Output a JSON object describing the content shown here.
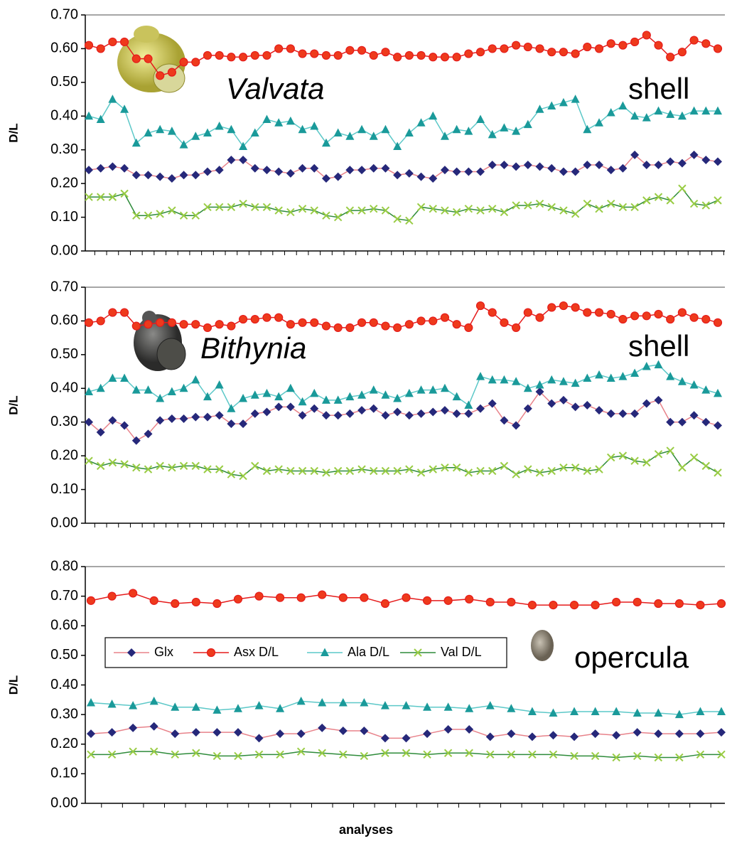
{
  "chart_data": [
    {
      "type": "line",
      "ylabel": "D/L",
      "annotations": [
        "Valvata",
        "shell"
      ],
      "ylim": [
        0,
        0.7
      ],
      "yticks": [
        {
          "value": 0,
          "label": "0.00"
        },
        {
          "value": 0.1,
          "label": "0.10"
        },
        {
          "value": 0.2,
          "label": "0.20"
        },
        {
          "value": 0.3,
          "label": "0.30"
        },
        {
          "value": 0.4,
          "label": "0.40"
        },
        {
          "value": 0.5,
          "label": "0.50"
        },
        {
          "value": 0.6,
          "label": "0.60"
        },
        {
          "value": 0.7,
          "label": "0.70"
        }
      ],
      "series": [
        {
          "marker": "diamond",
          "color": "#26287a",
          "line_color": "#e8828a",
          "values": [
            0.24,
            0.245,
            0.25,
            0.245,
            0.225,
            0.225,
            0.22,
            0.215,
            0.225,
            0.225,
            0.235,
            0.24,
            0.27,
            0.27,
            0.245,
            0.24,
            0.235,
            0.23,
            0.245,
            0.245,
            0.215,
            0.22,
            0.24,
            0.24,
            0.245,
            0.245,
            0.225,
            0.23,
            0.22,
            0.215,
            0.24,
            0.235,
            0.235,
            0.235,
            0.255,
            0.255,
            0.25,
            0.255,
            0.25,
            0.245,
            0.235,
            0.235,
            0.255,
            0.255,
            0.24,
            0.245,
            0.285,
            0.255,
            0.255,
            0.265,
            0.26,
            0.285,
            0.27,
            0.265
          ]
        },
        {
          "marker": "circle",
          "color": "#ee3a1c",
          "line_color": "#e51b1b",
          "values": [
            0.61,
            0.6,
            0.62,
            0.62,
            0.57,
            0.57,
            0.52,
            0.53,
            0.56,
            0.56,
            0.58,
            0.58,
            0.575,
            0.575,
            0.58,
            0.58,
            0.6,
            0.6,
            0.585,
            0.585,
            0.58,
            0.58,
            0.595,
            0.595,
            0.58,
            0.59,
            0.575,
            0.58,
            0.58,
            0.575,
            0.575,
            0.575,
            0.585,
            0.59,
            0.6,
            0.6,
            0.61,
            0.605,
            0.6,
            0.59,
            0.59,
            0.585,
            0.605,
            0.6,
            0.615,
            0.61,
            0.62,
            0.64,
            0.61,
            0.575,
            0.59,
            0.625,
            0.615,
            0.6
          ]
        },
        {
          "marker": "triangle",
          "color": "#1a9a9a",
          "line_color": "#5cc8c8",
          "values": [
            0.4,
            0.39,
            0.45,
            0.42,
            0.32,
            0.35,
            0.36,
            0.355,
            0.315,
            0.34,
            0.35,
            0.37,
            0.36,
            0.31,
            0.35,
            0.39,
            0.38,
            0.385,
            0.36,
            0.37,
            0.32,
            0.35,
            0.34,
            0.36,
            0.34,
            0.36,
            0.31,
            0.35,
            0.38,
            0.4,
            0.34,
            0.36,
            0.355,
            0.39,
            0.345,
            0.365,
            0.355,
            0.375,
            0.42,
            0.43,
            0.44,
            0.45,
            0.36,
            0.38,
            0.41,
            0.43,
            0.4,
            0.395,
            0.415,
            0.405,
            0.4,
            0.415,
            0.415,
            0.415
          ]
        },
        {
          "marker": "x",
          "color": "#99cc44",
          "line_color": "#2e8b3a",
          "values": [
            0.16,
            0.16,
            0.16,
            0.17,
            0.105,
            0.105,
            0.11,
            0.12,
            0.105,
            0.105,
            0.13,
            0.13,
            0.13,
            0.14,
            0.13,
            0.13,
            0.12,
            0.115,
            0.125,
            0.12,
            0.105,
            0.1,
            0.12,
            0.12,
            0.125,
            0.12,
            0.095,
            0.09,
            0.13,
            0.125,
            0.12,
            0.115,
            0.125,
            0.12,
            0.125,
            0.115,
            0.135,
            0.135,
            0.14,
            0.13,
            0.12,
            0.11,
            0.14,
            0.125,
            0.14,
            0.13,
            0.13,
            0.15,
            0.16,
            0.15,
            0.185,
            0.14,
            0.135,
            0.15
          ]
        }
      ]
    },
    {
      "type": "line",
      "ylabel": "D/L",
      "annotations": [
        "Bithynia",
        "shell"
      ],
      "ylim": [
        0,
        0.7
      ],
      "yticks": [
        {
          "value": 0,
          "label": "0.00"
        },
        {
          "value": 0.1,
          "label": "0.10"
        },
        {
          "value": 0.2,
          "label": "0.20"
        },
        {
          "value": 0.3,
          "label": "0.30"
        },
        {
          "value": 0.4,
          "label": "0.40"
        },
        {
          "value": 0.5,
          "label": "0.50"
        },
        {
          "value": 0.6,
          "label": "0.60"
        },
        {
          "value": 0.7,
          "label": "0.70"
        }
      ],
      "series": [
        {
          "marker": "diamond",
          "color": "#26287a",
          "line_color": "#e8828a",
          "values": [
            0.3,
            0.27,
            0.305,
            0.29,
            0.245,
            0.265,
            0.305,
            0.31,
            0.31,
            0.315,
            0.315,
            0.32,
            0.295,
            0.295,
            0.325,
            0.33,
            0.345,
            0.345,
            0.32,
            0.34,
            0.32,
            0.32,
            0.325,
            0.335,
            0.34,
            0.32,
            0.33,
            0.32,
            0.325,
            0.33,
            0.335,
            0.325,
            0.325,
            0.34,
            0.355,
            0.305,
            0.29,
            0.34,
            0.39,
            0.355,
            0.365,
            0.345,
            0.35,
            0.335,
            0.325,
            0.325,
            0.325,
            0.355,
            0.365,
            0.3,
            0.3,
            0.32,
            0.3,
            0.29
          ]
        },
        {
          "marker": "circle",
          "color": "#ee3a1c",
          "line_color": "#e51b1b",
          "values": [
            0.595,
            0.6,
            0.625,
            0.625,
            0.585,
            0.59,
            0.595,
            0.595,
            0.59,
            0.59,
            0.58,
            0.59,
            0.585,
            0.605,
            0.605,
            0.61,
            0.61,
            0.59,
            0.595,
            0.595,
            0.585,
            0.58,
            0.58,
            0.595,
            0.595,
            0.585,
            0.58,
            0.59,
            0.6,
            0.6,
            0.61,
            0.59,
            0.58,
            0.645,
            0.625,
            0.595,
            0.58,
            0.625,
            0.61,
            0.64,
            0.645,
            0.64,
            0.625,
            0.625,
            0.62,
            0.605,
            0.615,
            0.615,
            0.62,
            0.605,
            0.625,
            0.61,
            0.605,
            0.595
          ]
        },
        {
          "marker": "triangle",
          "color": "#1a9a9a",
          "line_color": "#5cc8c8",
          "values": [
            0.39,
            0.4,
            0.43,
            0.43,
            0.395,
            0.395,
            0.37,
            0.39,
            0.4,
            0.425,
            0.375,
            0.41,
            0.34,
            0.37,
            0.38,
            0.385,
            0.375,
            0.4,
            0.36,
            0.385,
            0.365,
            0.365,
            0.375,
            0.38,
            0.395,
            0.38,
            0.37,
            0.385,
            0.395,
            0.395,
            0.4,
            0.375,
            0.35,
            0.435,
            0.425,
            0.425,
            0.42,
            0.4,
            0.41,
            0.425,
            0.42,
            0.415,
            0.43,
            0.44,
            0.43,
            0.435,
            0.445,
            0.465,
            0.47,
            0.435,
            0.42,
            0.41,
            0.395,
            0.385
          ]
        },
        {
          "marker": "x",
          "color": "#99cc44",
          "line_color": "#2e8b3a",
          "values": [
            0.185,
            0.17,
            0.18,
            0.175,
            0.165,
            0.16,
            0.17,
            0.165,
            0.17,
            0.17,
            0.16,
            0.16,
            0.145,
            0.14,
            0.17,
            0.155,
            0.16,
            0.155,
            0.155,
            0.155,
            0.15,
            0.155,
            0.155,
            0.16,
            0.155,
            0.155,
            0.155,
            0.16,
            0.15,
            0.16,
            0.165,
            0.165,
            0.15,
            0.155,
            0.155,
            0.17,
            0.145,
            0.16,
            0.15,
            0.155,
            0.165,
            0.165,
            0.155,
            0.16,
            0.195,
            0.2,
            0.185,
            0.18,
            0.205,
            0.215,
            0.165,
            0.195,
            0.17,
            0.15
          ]
        }
      ]
    },
    {
      "type": "line",
      "ylabel": "D/L",
      "xlabel": "analyses",
      "annotations": [
        "opercula"
      ],
      "ylim": [
        0,
        0.8
      ],
      "yticks": [
        {
          "value": 0,
          "label": "0.00"
        },
        {
          "value": 0.1,
          "label": "0.10"
        },
        {
          "value": 0.2,
          "label": "0.20"
        },
        {
          "value": 0.3,
          "label": "0.30"
        },
        {
          "value": 0.4,
          "label": "0.40"
        },
        {
          "value": 0.5,
          "label": "0.50"
        },
        {
          "value": 0.6,
          "label": "0.60"
        },
        {
          "value": 0.7,
          "label": "0.70"
        },
        {
          "value": 0.8,
          "label": "0.80"
        }
      ],
      "legend": "center left",
      "series": [
        {
          "name": "Glx",
          "marker": "diamond",
          "color": "#26287a",
          "line_color": "#e8828a",
          "values": [
            0.235,
            0.24,
            0.255,
            0.26,
            0.235,
            0.24,
            0.24,
            0.24,
            0.22,
            0.235,
            0.235,
            0.255,
            0.245,
            0.245,
            0.22,
            0.22,
            0.235,
            0.25,
            0.25,
            0.225,
            0.235,
            0.225,
            0.23,
            0.225,
            0.235,
            0.23,
            0.24,
            0.235,
            0.235,
            0.235,
            0.24
          ]
        },
        {
          "name": "Asx D/L",
          "marker": "circle",
          "color": "#ee3a1c",
          "line_color": "#e51b1b",
          "values": [
            0.685,
            0.7,
            0.71,
            0.685,
            0.675,
            0.68,
            0.675,
            0.69,
            0.7,
            0.695,
            0.695,
            0.705,
            0.695,
            0.695,
            0.675,
            0.695,
            0.685,
            0.685,
            0.69,
            0.68,
            0.68,
            0.67,
            0.67,
            0.67,
            0.67,
            0.68,
            0.68,
            0.675,
            0.675,
            0.67,
            0.675
          ]
        },
        {
          "name": "Ala D/L",
          "marker": "triangle",
          "color": "#1a9a9a",
          "line_color": "#5cc8c8",
          "values": [
            0.34,
            0.335,
            0.33,
            0.345,
            0.325,
            0.325,
            0.315,
            0.32,
            0.33,
            0.32,
            0.345,
            0.34,
            0.34,
            0.34,
            0.33,
            0.33,
            0.325,
            0.325,
            0.32,
            0.33,
            0.32,
            0.31,
            0.305,
            0.31,
            0.31,
            0.31,
            0.305,
            0.305,
            0.3,
            0.31,
            0.31
          ]
        },
        {
          "name": "Val D/L",
          "marker": "x",
          "color": "#99cc44",
          "line_color": "#2e8b3a",
          "values": [
            0.165,
            0.165,
            0.175,
            0.175,
            0.165,
            0.17,
            0.16,
            0.16,
            0.165,
            0.165,
            0.175,
            0.17,
            0.165,
            0.16,
            0.17,
            0.17,
            0.165,
            0.17,
            0.17,
            0.165,
            0.165,
            0.165,
            0.165,
            0.16,
            0.16,
            0.155,
            0.16,
            0.155,
            0.155,
            0.165,
            0.165
          ]
        }
      ]
    }
  ]
}
